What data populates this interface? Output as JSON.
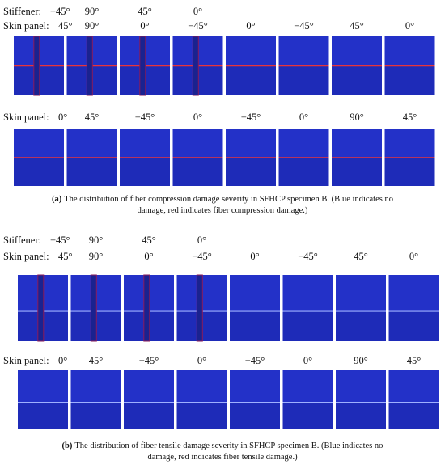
{
  "panels": [
    {
      "stiffener": {
        "label": "Stiffener:",
        "angles": [
          "−45°",
          "90°",
          "45°",
          "0°"
        ]
      },
      "rows": [
        {
          "label": "Skin panel:",
          "angles": [
            "45°",
            "90°",
            "0°",
            "−45°",
            "0°",
            "−45°",
            "45°",
            "0°"
          ]
        },
        {
          "label": "Skin panel:",
          "angles": [
            "0°",
            "45°",
            "−45°",
            "0°",
            "−45°",
            "0°",
            "90°",
            "45°"
          ]
        }
      ],
      "caption": {
        "tag": "(a)",
        "text": "The distribution of fiber compression damage severity in SFHCP specimen B. (Blue indicates no damage, red indicates fiber compression damage.)"
      }
    },
    {
      "stiffener": {
        "label": "Stiffener:",
        "angles": [
          "−45°",
          "90°",
          "45°",
          "0°"
        ]
      },
      "rows": [
        {
          "label": "Skin panel:",
          "angles": [
            "45°",
            "90°",
            "0°",
            "−45°",
            "0°",
            "−45°",
            "45°",
            "0°"
          ]
        },
        {
          "label": "Skin panel:",
          "angles": [
            "0°",
            "45°",
            "−45°",
            "0°",
            "−45°",
            "0°",
            "90°",
            "45°"
          ]
        }
      ],
      "caption": {
        "tag": "(b)",
        "text": "The distribution of fiber tensile damage severity in SFHCP specimen B. (Blue indicates no damage, red indicates fiber tensile damage.)"
      }
    }
  ]
}
